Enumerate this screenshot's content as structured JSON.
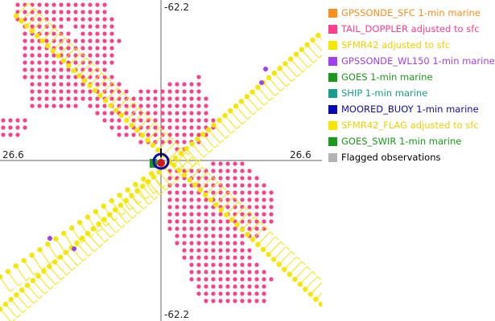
{
  "map": {
    "axis": {
      "lat_top": "-62.2",
      "lat_bottom": "-62.2",
      "lon_left": "26.6",
      "lon_right": "26.6"
    }
  },
  "legend": {
    "items": [
      {
        "label": "GPSSONDE_SFC 1-min marine",
        "color": "#ff8c1a",
        "text_color": "#ff8c1a"
      },
      {
        "label": "TAIL_DOPPLER adjusted to sfc",
        "color": "#ff3d8b",
        "text_color": "#ff3d8b"
      },
      {
        "label": "SFMR42 adjusted to sfc",
        "color": "#f7e600",
        "text_color": "#f0d000"
      },
      {
        "label": "GPSSONDE_WL150 1-min marine",
        "color": "#a040f0",
        "text_color": "#a040f0"
      },
      {
        "label": "GOES 1-min marine",
        "color": "#1a9a1a",
        "text_color": "#1a9a1a"
      },
      {
        "label": "SHIP 1-min marine",
        "color": "#14a08c",
        "text_color": "#14a08c"
      },
      {
        "label": "MOORED_BUOY 1-min marine",
        "color": "#0a0ab4",
        "text_color": "#0a0ab4"
      },
      {
        "label": "SFMR42_FLAG adjusted to sfc",
        "color": "#f7e600",
        "text_color": "#f0d000"
      },
      {
        "label": "GOES_SWIR 1-min marine",
        "color": "#1a9a1a",
        "text_color": "#1a9a1a"
      },
      {
        "label": "Flagged observations",
        "color": "#b4b4b4",
        "text_color": "#000000"
      }
    ]
  }
}
